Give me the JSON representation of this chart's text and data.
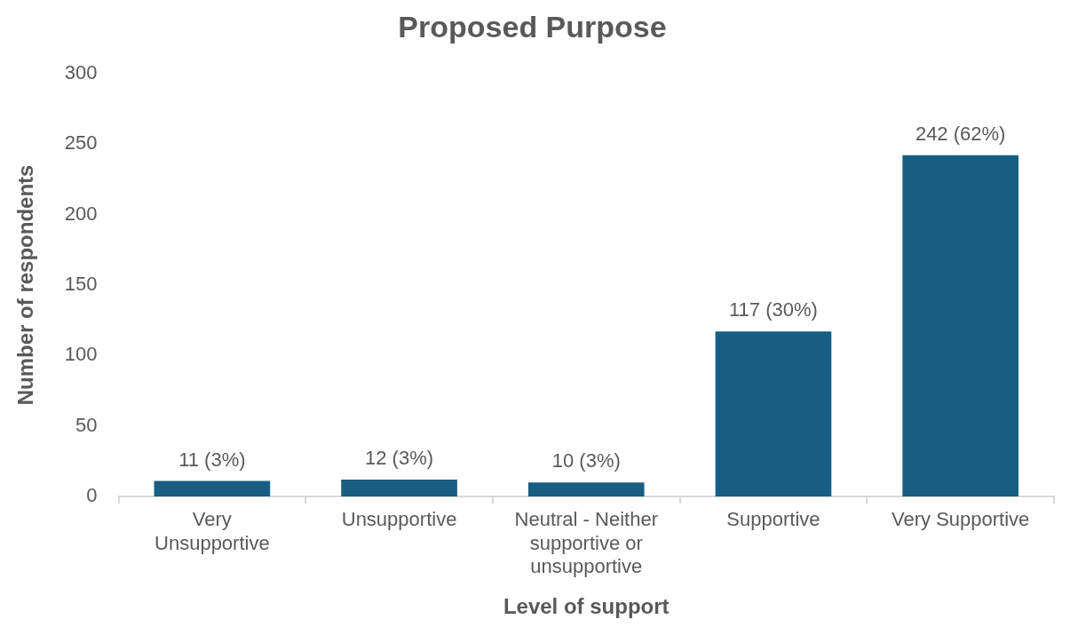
{
  "chart_data": {
    "type": "bar",
    "title": "Proposed Purpose",
    "xlabel": "Level of support",
    "ylabel": "Number of respondents",
    "categories": [
      "Very Unsupportive",
      "Unsupportive",
      "Neutral - Neither supportive or unsupportive",
      "Supportive",
      "Very Supportive"
    ],
    "values": [
      11,
      12,
      10,
      117,
      242
    ],
    "color": "#175e82",
    "value_labels": [
      "11 (3%)",
      "12 (3%)",
      "10 (3%)",
      "117 (30%)",
      "242 (62%)"
    ],
    "ylim": [
      0,
      300
    ],
    "yticks": [
      0,
      50,
      100,
      150,
      200,
      250,
      300
    ],
    "grid": false,
    "legend": false
  }
}
